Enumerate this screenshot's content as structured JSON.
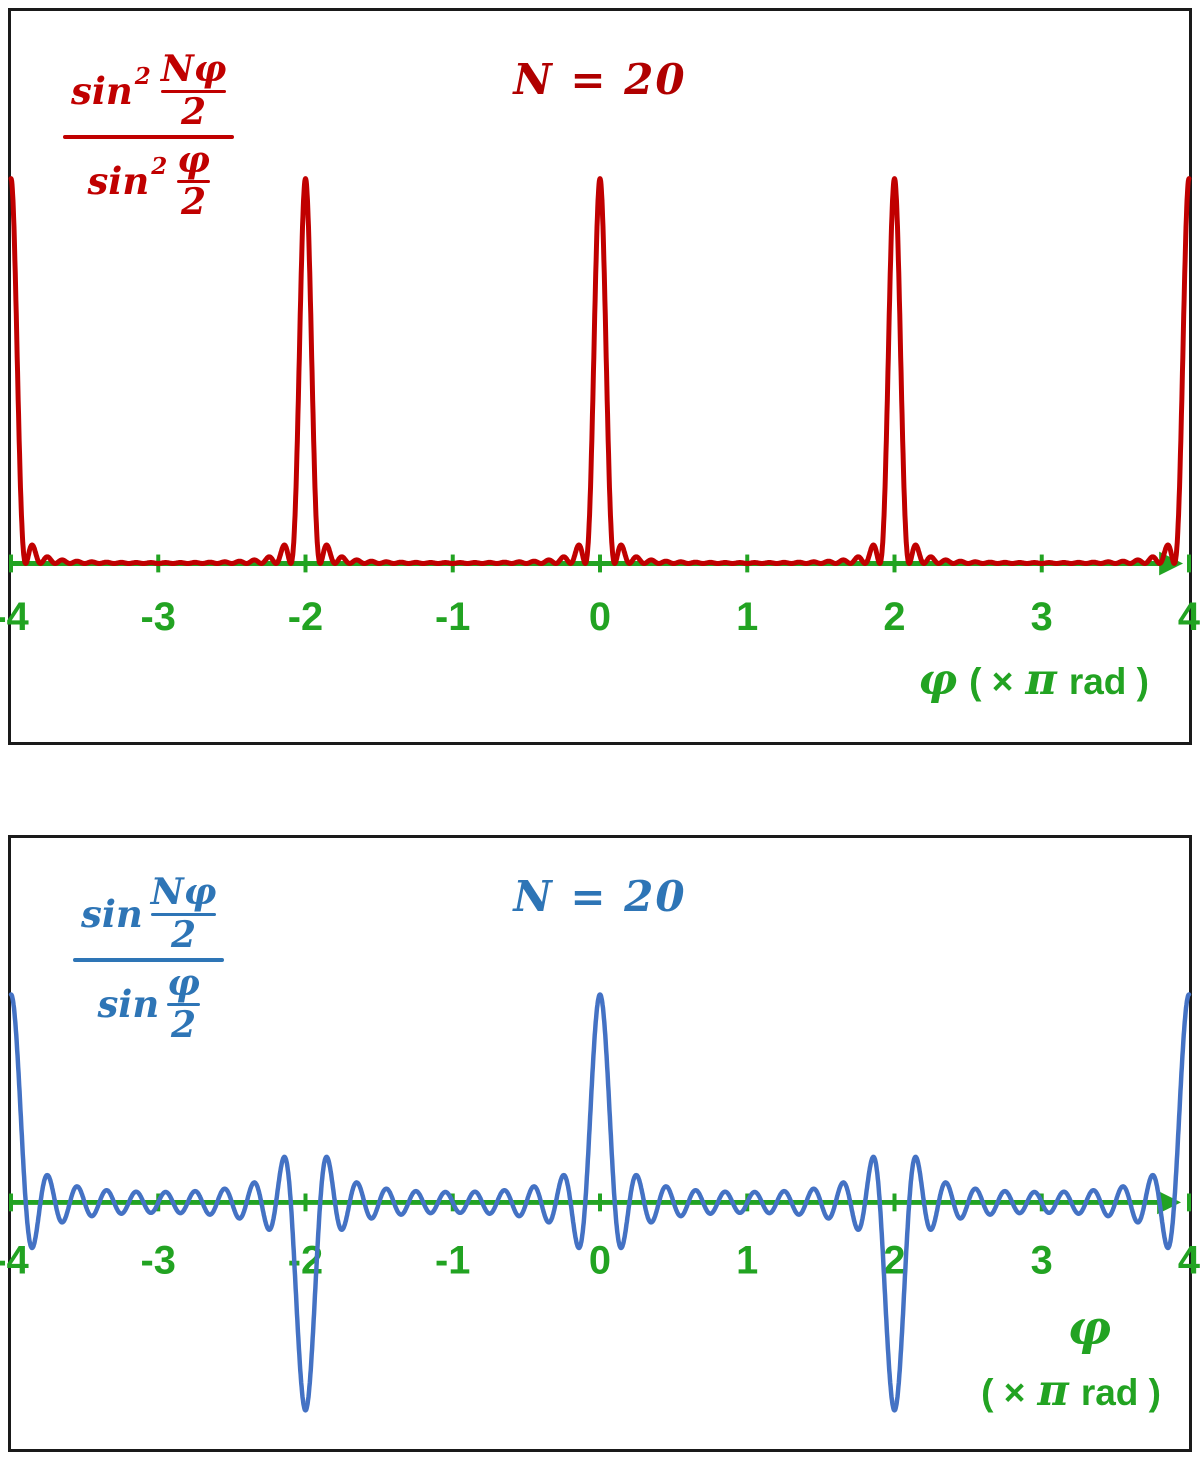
{
  "chart_data": [
    {
      "type": "line",
      "title": "N = 20",
      "N": 20,
      "variant": "squared",
      "expression": "sin^2(N*phi/2) / sin^2(phi/2)",
      "x_axis": {
        "units": "pi rad",
        "range_pi": [
          -4,
          4
        ],
        "tick_labels": [
          "-4",
          "-3",
          "-2",
          "-1",
          "0",
          "1",
          "2",
          "3",
          "4"
        ],
        "label_phi": "φ",
        "label_pre": "( ×",
        "label_pi": "π",
        "label_post": "rad )"
      },
      "y_axis": {
        "range": [
          0,
          400
        ],
        "shown": false
      },
      "principal_maxima": {
        "positions_pi": [
          -4,
          -2,
          0,
          2,
          4
        ],
        "value": 400
      },
      "secondary_maxima_value_approx": 18,
      "zero_spacing_pi": 0.1,
      "colors": {
        "curve": "#c00000",
        "axis": "#22a322",
        "title": "#b00000"
      },
      "formula": {
        "fn": "sin",
        "exp": "2",
        "num": "Nφ",
        "den": "2",
        "fn2": "sin",
        "exp2": "2",
        "num2": "φ",
        "den2": "2"
      }
    },
    {
      "type": "line",
      "title": "N = 20",
      "N": 20,
      "variant": "plain",
      "expression": "sin(N*phi/2) / sin(phi/2)",
      "x_axis": {
        "units": "pi rad",
        "range_pi": [
          -4,
          4
        ],
        "tick_labels": [
          "-4",
          "-3",
          "-2",
          "-1",
          "0",
          "1",
          "2",
          "3",
          "4"
        ],
        "label_phi": "φ",
        "label_pre": "( ×",
        "label_pi": "π",
        "label_post": "rad )"
      },
      "y_axis": {
        "range": [
          -20,
          20
        ],
        "shown": false
      },
      "maxima": {
        "positions_pi": [
          -4,
          0,
          4
        ],
        "value": 20
      },
      "minima": {
        "positions_pi": [
          -2,
          2
        ],
        "value": -20
      },
      "zero_spacing_pi": 0.1,
      "colors": {
        "curve": "#4472c4",
        "axis": "#22a322",
        "title": "#2e75b6"
      },
      "formula": {
        "fn": "sin",
        "num": "Nφ",
        "den": "2",
        "fn2": "sin",
        "num2": "φ",
        "den2": "2"
      }
    }
  ]
}
